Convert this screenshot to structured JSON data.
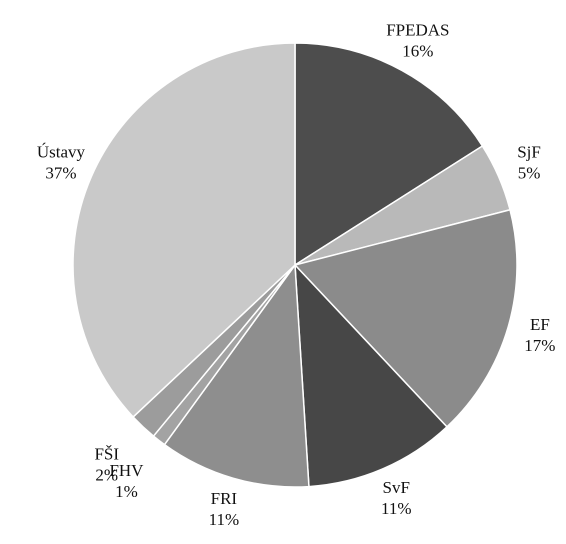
{
  "chart_data": {
    "type": "pie",
    "categories": [
      "FPEDAS",
      "SjF",
      "EF",
      "SvF",
      "FRI",
      "FHV",
      "FŠI",
      "Ústavy"
    ],
    "values": [
      16,
      5,
      17,
      11,
      11,
      1,
      2,
      37
    ],
    "value_labels": [
      "16%",
      "5%",
      "17%",
      "11%",
      "11%",
      "1%",
      "2%",
      "37%"
    ],
    "colors": [
      "#4d4d4d",
      "#b9b9b9",
      "#8b8b8b",
      "#474747",
      "#8e8e8e",
      "#a3a3a3",
      "#9c9c9c",
      "#c9c9c9"
    ]
  }
}
